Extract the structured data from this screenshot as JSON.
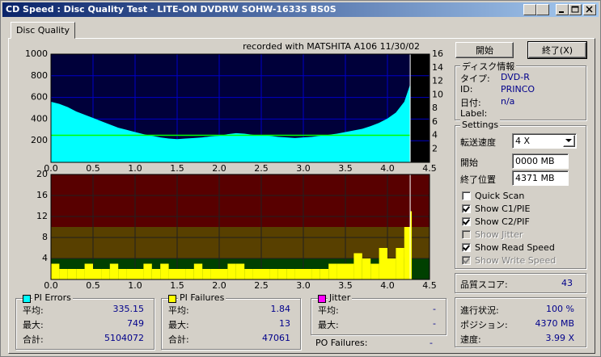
{
  "window": {
    "title": "CD Speed : Disc Quality Test - LITE-ON DVDRW SOHW-1633S BS0S"
  },
  "tab": "Disc Quality",
  "chart_data": [
    {
      "type": "area",
      "title": "recorded with MATSHITA A106 11/30/02",
      "xlim": [
        0,
        4.5
      ],
      "xticks": [
        {
          "value": 0,
          "label": "0.0"
        },
        0.5,
        {
          "value": 1,
          "label": "1.0"
        },
        1.5,
        {
          "value": 2,
          "label": "2.0"
        },
        2.5,
        {
          "value": 3,
          "label": "3.0"
        },
        3.5,
        {
          "value": 4,
          "label": "4.0"
        },
        4.5
      ],
      "ylim": [
        0,
        1000
      ],
      "yticks": [
        200,
        400,
        600,
        800,
        1000
      ],
      "y2lim": [
        0,
        16
      ],
      "y2ticks": [
        2,
        4,
        6,
        8,
        10,
        12,
        14,
        16
      ],
      "marker": 4.27,
      "series": [
        {
          "color": "#00ffff",
          "x": [
            0,
            0.1,
            0.2,
            0.3,
            0.4,
            0.5,
            0.6,
            0.7,
            0.8,
            0.9,
            1,
            1.1,
            1.2,
            1.3,
            1.4,
            1.5,
            1.6,
            1.7,
            1.8,
            1.9,
            2,
            2.1,
            2.2,
            2.3,
            2.4,
            2.5,
            2.6,
            2.7,
            2.8,
            2.9,
            3,
            3.1,
            3.2,
            3.3,
            3.4,
            3.5,
            3.6,
            3.7,
            3.8,
            3.9,
            4,
            4.1,
            4.2,
            4.27
          ],
          "values": [
            560,
            540,
            510,
            470,
            440,
            410,
            380,
            350,
            320,
            300,
            280,
            260,
            245,
            230,
            220,
            215,
            220,
            225,
            230,
            240,
            245,
            260,
            270,
            265,
            255,
            250,
            245,
            235,
            230,
            225,
            230,
            235,
            245,
            255,
            265,
            280,
            295,
            310,
            335,
            365,
            405,
            460,
            560,
            720
          ]
        },
        {
          "color": "#00ff00",
          "axis": "y2",
          "x": [
            0,
            4.27
          ],
          "values": [
            4,
            4
          ]
        }
      ]
    },
    {
      "type": "bar",
      "xlim": [
        0,
        4.5
      ],
      "xticks": [
        {
          "value": 0,
          "label": "0.0"
        },
        0.5,
        {
          "value": 1,
          "label": "1.0"
        },
        1.5,
        {
          "value": 2,
          "label": "2.0"
        },
        2.5,
        {
          "value": 3,
          "label": "3.0"
        },
        3.5,
        {
          "value": 4,
          "label": "4.0"
        },
        4.5
      ],
      "ylim": [
        0,
        20
      ],
      "yticks": [
        4,
        8,
        12,
        16,
        20
      ],
      "bands": [
        {
          "from": 0,
          "to": 4,
          "color": "#004000"
        },
        {
          "from": 4,
          "to": 10,
          "color": "#584000"
        },
        {
          "from": 10,
          "to": 20,
          "color": "#580000"
        }
      ],
      "marker": 4.27,
      "series": [
        {
          "color": "#ffff00",
          "x": [
            0,
            0.1,
            0.2,
            0.3,
            0.4,
            0.5,
            0.6,
            0.7,
            0.8,
            0.9,
            1,
            1.1,
            1.2,
            1.3,
            1.4,
            1.5,
            1.6,
            1.7,
            1.8,
            1.9,
            2,
            2.1,
            2.2,
            2.3,
            2.4,
            2.5,
            2.6,
            2.7,
            2.8,
            2.9,
            3,
            3.1,
            3.2,
            3.3,
            3.4,
            3.5,
            3.6,
            3.7,
            3.8,
            3.9,
            4,
            4.1,
            4.2,
            4.27
          ],
          "values": [
            3,
            2,
            2,
            2,
            3,
            2,
            2,
            3,
            2,
            2,
            2,
            3,
            2,
            3,
            2,
            2,
            2,
            3,
            2,
            2,
            2,
            3,
            3,
            2,
            2,
            2,
            2,
            2,
            2,
            2,
            2,
            2,
            2,
            3,
            3,
            3,
            5,
            4,
            3,
            6,
            4,
            6,
            10,
            13
          ]
        }
      ]
    }
  ],
  "buttons": {
    "start": "開始",
    "exit": "終了(X)"
  },
  "disc_info": {
    "title": "ディスク情報",
    "rows": [
      [
        "タイプ:",
        "DVD-R"
      ],
      [
        "ID:",
        "PRINCO"
      ],
      [
        "日付:",
        "n/a"
      ],
      [
        "Label:",
        ""
      ]
    ]
  },
  "settings": {
    "title": "Settings",
    "speed": [
      "転送速度",
      "4 X"
    ],
    "start": [
      "開始",
      "0000 MB"
    ],
    "end": [
      "終了位置",
      "4371 MB"
    ],
    "options": [
      {
        "label": "Quick Scan",
        "checked": false,
        "enabled": true
      },
      {
        "label": "Show C1/PIE",
        "checked": true,
        "enabled": true
      },
      {
        "label": "Show C2/PIF",
        "checked": true,
        "enabled": true
      },
      {
        "label": "Show Jitter",
        "checked": false,
        "enabled": false
      },
      {
        "label": "Show Read Speed",
        "checked": true,
        "enabled": true
      },
      {
        "label": "Show Write Speed",
        "checked": true,
        "enabled": false
      }
    ]
  },
  "quality_score": {
    "label": "品質スコア:",
    "value": 43
  },
  "progress": [
    [
      "進行状況:",
      "100 %"
    ],
    [
      "ポジション:",
      "4370 MB"
    ],
    [
      "速度:",
      "3.99 X"
    ]
  ],
  "stats": [
    {
      "title": "PI Errors",
      "color": "#00ffff",
      "rows": [
        [
          "平均:",
          335.15
        ],
        [
          "最大:",
          749
        ],
        [
          "合計:",
          5104072
        ]
      ]
    },
    {
      "title": "PI Failures",
      "color": "#ffff00",
      "rows": [
        [
          "平均:",
          1.84
        ],
        [
          "最大:",
          13
        ],
        [
          "合計:",
          47061
        ]
      ]
    },
    {
      "title": "Jitter",
      "color": "#ff00ff",
      "rows": [
        [
          "平均:",
          "-"
        ],
        [
          "最大:",
          "-"
        ]
      ]
    }
  ],
  "po_failures": {
    "label": "PO Failures:",
    "value": "-"
  }
}
